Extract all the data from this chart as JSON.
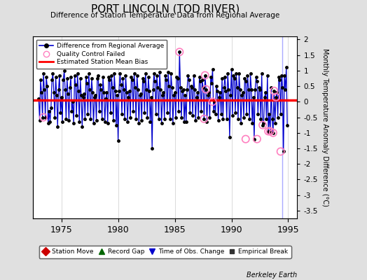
{
  "title": "PORT LINCOLN (TOD RIVER)",
  "subtitle": "Difference of Station Temperature Data from Regional Average",
  "ylabel_right": "Monthly Temperature Anomaly Difference (°C)",
  "background_color": "#e0e0e0",
  "plot_bg_color": "#ffffff",
  "ylim": [
    -3.75,
    2.1
  ],
  "xlim": [
    1972.5,
    1995.8
  ],
  "yticks": [
    -3.5,
    -3.0,
    -2.5,
    -2.0,
    -1.5,
    -1.0,
    -0.5,
    0.0,
    0.5,
    1.0,
    1.5,
    2.0
  ],
  "ytick_labels": [
    "-3.5",
    "-3",
    "-2.5",
    "-2",
    "-1.5",
    "-1",
    "-0.5",
    "0",
    "0.5",
    "1",
    "1.5",
    "2"
  ],
  "xticks": [
    1975,
    1980,
    1985,
    1990,
    1995
  ],
  "mean_bias": 0.05,
  "line_color": "#0000cc",
  "line_width": 0.9,
  "marker_color": "#000000",
  "marker_size": 2.5,
  "bias_color": "#ff0000",
  "bias_linewidth": 2.5,
  "qc_fail_color": "#ff80c0",
  "vertical_line_x": 1994.5,
  "vertical_line_color": "#aaaaff",
  "grid_color": "#cccccc",
  "series_x": [
    1973.0,
    1973.083,
    1973.167,
    1973.25,
    1973.333,
    1973.417,
    1973.5,
    1973.583,
    1973.667,
    1973.75,
    1973.833,
    1973.917,
    1974.0,
    1974.083,
    1974.167,
    1974.25,
    1974.333,
    1974.417,
    1974.5,
    1974.583,
    1974.667,
    1974.75,
    1974.833,
    1974.917,
    1975.0,
    1975.083,
    1975.167,
    1975.25,
    1975.333,
    1975.417,
    1975.5,
    1975.583,
    1975.667,
    1975.75,
    1975.833,
    1975.917,
    1976.0,
    1976.083,
    1976.167,
    1976.25,
    1976.333,
    1976.417,
    1976.5,
    1976.583,
    1976.667,
    1976.75,
    1976.833,
    1976.917,
    1977.0,
    1977.083,
    1977.167,
    1977.25,
    1977.333,
    1977.417,
    1977.5,
    1977.583,
    1977.667,
    1977.75,
    1977.833,
    1977.917,
    1978.0,
    1978.083,
    1978.167,
    1978.25,
    1978.333,
    1978.417,
    1978.5,
    1978.583,
    1978.667,
    1978.75,
    1978.833,
    1978.917,
    1979.0,
    1979.083,
    1979.167,
    1979.25,
    1979.333,
    1979.417,
    1979.5,
    1979.583,
    1979.667,
    1979.75,
    1979.833,
    1979.917,
    1980.0,
    1980.083,
    1980.167,
    1980.25,
    1980.333,
    1980.417,
    1980.5,
    1980.583,
    1980.667,
    1980.75,
    1980.833,
    1980.917,
    1981.0,
    1981.083,
    1981.167,
    1981.25,
    1981.333,
    1981.417,
    1981.5,
    1981.583,
    1981.667,
    1981.75,
    1981.833,
    1981.917,
    1982.0,
    1982.083,
    1982.167,
    1982.25,
    1982.333,
    1982.417,
    1982.5,
    1982.583,
    1982.667,
    1982.75,
    1982.833,
    1982.917,
    1983.0,
    1983.083,
    1983.167,
    1983.25,
    1983.333,
    1983.417,
    1983.5,
    1983.583,
    1983.667,
    1983.75,
    1983.833,
    1983.917,
    1984.0,
    1984.083,
    1984.167,
    1984.25,
    1984.333,
    1984.417,
    1984.5,
    1984.583,
    1984.667,
    1984.75,
    1984.833,
    1984.917,
    1985.0,
    1985.083,
    1985.167,
    1985.25,
    1985.333,
    1985.417,
    1985.5,
    1985.583,
    1985.667,
    1985.75,
    1985.833,
    1985.917,
    1986.0,
    1986.083,
    1986.167,
    1986.25,
    1986.333,
    1986.417,
    1986.5,
    1986.583,
    1986.667,
    1986.75,
    1986.833,
    1986.917,
    1987.0,
    1987.083,
    1987.167,
    1987.25,
    1987.333,
    1987.417,
    1987.5,
    1987.583,
    1987.667,
    1987.75,
    1987.833,
    1987.917,
    1988.0,
    1988.083,
    1988.167,
    1988.25,
    1988.333,
    1988.417,
    1988.5,
    1988.583,
    1988.667,
    1988.75,
    1988.833,
    1988.917,
    1989.0,
    1989.083,
    1989.167,
    1989.25,
    1989.333,
    1989.417,
    1989.5,
    1989.583,
    1989.667,
    1989.75,
    1989.833,
    1989.917,
    1990.0,
    1990.083,
    1990.167,
    1990.25,
    1990.333,
    1990.417,
    1990.5,
    1990.583,
    1990.667,
    1990.75,
    1990.833,
    1990.917,
    1991.0,
    1991.083,
    1991.167,
    1991.25,
    1991.333,
    1991.417,
    1991.5,
    1991.583,
    1991.667,
    1991.75,
    1991.833,
    1991.917,
    1992.0,
    1992.083,
    1992.167,
    1992.25,
    1992.333,
    1992.417,
    1992.5,
    1992.583,
    1992.667,
    1992.75,
    1992.833,
    1992.917,
    1993.0,
    1993.083,
    1993.167,
    1993.25,
    1993.333,
    1993.417,
    1993.5,
    1993.583,
    1993.667,
    1993.75,
    1993.833,
    1993.917,
    1994.0,
    1994.083,
    1994.167,
    1994.25,
    1994.333,
    1994.417,
    1994.5,
    1994.583,
    1994.667,
    1994.75,
    1994.833,
    1994.917
  ],
  "series_y": [
    0.1,
    -0.6,
    0.7,
    0.3,
    -0.5,
    0.9,
    0.4,
    -0.5,
    0.8,
    0.5,
    -0.7,
    -0.3,
    -0.65,
    -0.2,
    0.7,
    0.9,
    0.3,
    -0.5,
    0.8,
    0.2,
    -0.8,
    0.4,
    0.85,
    -0.35,
    0.15,
    -0.65,
    0.7,
    1.0,
    0.4,
    -0.55,
    0.75,
    0.25,
    -0.6,
    0.45,
    0.8,
    -0.3,
    0.0,
    -0.7,
    0.85,
    0.55,
    -0.45,
    0.9,
    0.35,
    -0.65,
    0.75,
    0.2,
    -0.8,
    0.15,
    0.25,
    -0.55,
    0.8,
    0.6,
    -0.4,
    0.9,
    0.4,
    -0.55,
    0.75,
    0.3,
    -0.7,
    0.15,
    0.2,
    -0.6,
    0.75,
    0.85,
    -0.3,
    0.55,
    0.4,
    -0.55,
    0.8,
    0.3,
    -0.65,
    0.1,
    0.3,
    -0.7,
    0.8,
    0.7,
    -0.35,
    0.85,
    0.45,
    -0.6,
    0.9,
    0.35,
    -0.75,
    0.2,
    -1.25,
    0.35,
    0.9,
    0.55,
    -0.4,
    0.75,
    0.4,
    -0.55,
    0.85,
    0.3,
    -0.65,
    0.15,
    0.35,
    -0.5,
    0.8,
    0.7,
    -0.3,
    0.9,
    0.45,
    -0.55,
    0.85,
    0.4,
    -0.7,
    0.2,
    0.25,
    -0.6,
    0.75,
    0.65,
    -0.35,
    0.9,
    0.4,
    -0.5,
    0.8,
    0.35,
    -0.65,
    0.15,
    -1.5,
    0.4,
    0.9,
    0.65,
    -0.4,
    0.85,
    0.45,
    -0.55,
    0.95,
    0.4,
    -0.7,
    0.2,
    0.3,
    -0.55,
    0.85,
    0.7,
    -0.35,
    0.95,
    0.5,
    -0.55,
    0.9,
    0.45,
    -0.7,
    0.2,
    0.3,
    -0.5,
    0.8,
    0.75,
    -0.3,
    1.6,
    0.45,
    -0.5,
    0.35,
    0.4,
    -0.65,
    0.2,
    -0.65,
    0.4,
    0.85,
    0.7,
    -0.35,
    0.5,
    0.45,
    -0.45,
    0.85,
    0.4,
    -0.6,
    0.15,
    0.3,
    -0.5,
    0.8,
    0.65,
    -0.3,
    0.7,
    0.45,
    -0.55,
    0.85,
    0.4,
    -0.65,
    0.2,
    0.3,
    -0.5,
    0.8,
    0.6,
    1.05,
    -0.3,
    0.0,
    -0.4,
    0.5,
    0.35,
    -0.6,
    0.15,
    0.3,
    -0.4,
    0.75,
    -0.55,
    0.45,
    0.8,
    0.35,
    -0.55,
    0.9,
    0.4,
    -1.15,
    0.2,
    1.05,
    -0.45,
    0.85,
    0.75,
    -0.35,
    0.9,
    0.45,
    -0.55,
    0.9,
    0.4,
    -0.7,
    0.2,
    0.3,
    -0.5,
    0.75,
    0.65,
    -0.4,
    0.85,
    0.4,
    -0.55,
    0.9,
    0.4,
    -0.7,
    0.15,
    -1.2,
    0.4,
    0.8,
    0.65,
    -0.4,
    0.45,
    0.4,
    -0.55,
    0.9,
    -0.75,
    -0.7,
    0.15,
    0.3,
    -0.55,
    0.85,
    -0.95,
    -0.4,
    -0.95,
    0.45,
    -0.55,
    -1.0,
    0.35,
    -0.7,
    0.15,
    0.3,
    -0.5,
    0.8,
    0.7,
    -0.4,
    0.85,
    0.45,
    -1.6,
    0.85,
    0.4,
    1.1,
    -0.75
  ],
  "qc_fail_x": [
    1973.417,
    1985.417,
    1987.583,
    1987.667,
    1987.75,
    1988.333,
    1991.25,
    1992.25,
    1992.75,
    1993.25,
    1993.417,
    1993.667,
    1993.75,
    1993.917,
    1994.333
  ],
  "qc_fail_y": [
    -0.5,
    1.6,
    -0.55,
    0.85,
    0.4,
    0.0,
    -1.2,
    -1.2,
    -0.75,
    -0.95,
    -0.95,
    -1.0,
    0.35,
    0.15,
    -1.6
  ],
  "footer_text": "Berkeley Earth"
}
